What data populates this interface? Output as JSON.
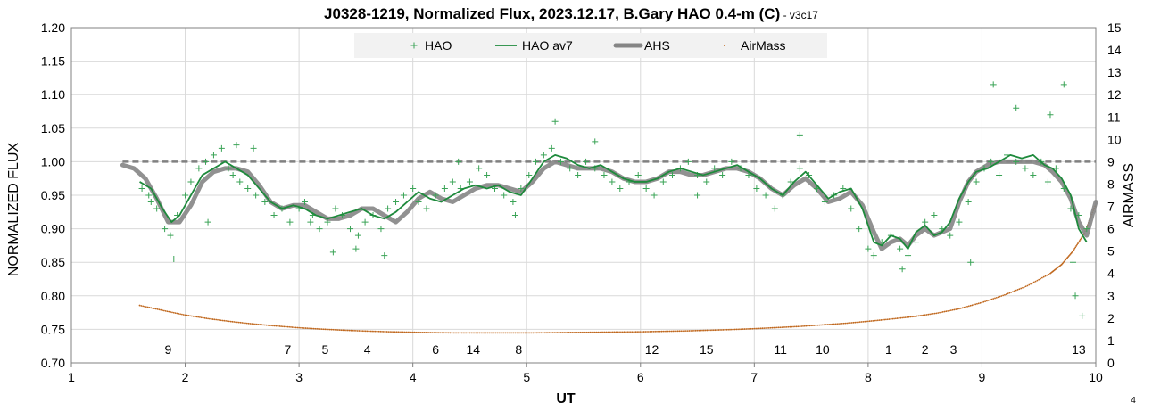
{
  "chart_data": {
    "type": "line",
    "title": "J0328-1219, Normalized Flux, 2023.12.17, B.Gary HAO 0.4-m (C)",
    "title_suffix": " - ",
    "version": "v3c17",
    "xlabel": "UT",
    "ylabel": "NORMALIZED FLUX",
    "y2label": "AIRMASS",
    "xlim": [
      1,
      10
    ],
    "ylim": [
      0.7,
      1.2
    ],
    "y2lim": [
      0,
      15
    ],
    "x_ticks": [
      "1",
      "2",
      "3",
      "4",
      "5",
      "6",
      "7",
      "8",
      "9",
      "10"
    ],
    "y_ticks": [
      "0.70",
      "0.75",
      "0.80",
      "0.85",
      "0.90",
      "0.95",
      "1.00",
      "1.05",
      "1.10",
      "1.15",
      "1.20"
    ],
    "y2_ticks": [
      "0",
      "1",
      "2",
      "3",
      "4",
      "5",
      "6",
      "7",
      "8",
      "9",
      "10",
      "11",
      "12",
      "13",
      "14",
      "15"
    ],
    "grid": true,
    "legend_position": "top",
    "corner_label": "4",
    "colors": {
      "hao": "#3aa356",
      "hao_av7": "#1e8a3c",
      "ahs": "#858585",
      "airmass": "#c0681e",
      "reference": "#808080"
    },
    "series": [
      {
        "name": "HAO",
        "style": "markers-plus",
        "x": [
          1.62,
          1.68,
          1.75,
          1.82,
          1.87,
          1.93,
          2.0,
          2.05,
          2.12,
          2.18,
          2.25,
          2.32,
          2.38,
          2.42,
          2.48,
          2.55,
          2.62,
          2.7,
          2.78,
          2.85,
          2.92,
          3.0,
          3.05,
          3.12,
          3.18,
          3.25,
          3.32,
          3.38,
          3.45,
          3.52,
          3.58,
          3.65,
          3.72,
          3.78,
          3.85,
          3.92,
          4.0,
          4.05,
          4.12,
          4.2,
          4.28,
          4.35,
          4.42,
          4.5,
          4.58,
          4.65,
          4.72,
          4.8,
          4.88,
          4.95,
          5.02,
          5.08,
          5.15,
          5.22,
          5.3,
          5.38,
          5.45,
          5.52,
          5.6,
          5.68,
          5.75,
          5.82,
          5.9,
          5.98,
          6.05,
          6.12,
          6.2,
          6.28,
          6.35,
          6.42,
          6.5,
          6.58,
          6.65,
          6.72,
          6.8,
          6.88,
          6.95,
          7.02,
          7.1,
          7.18,
          7.25,
          7.32,
          7.4,
          7.48,
          7.55,
          7.62,
          7.7,
          7.78,
          7.85,
          7.92,
          8.0,
          8.05,
          8.12,
          8.2,
          8.28,
          8.35,
          8.42,
          8.5,
          8.58,
          8.65,
          8.72,
          8.8,
          8.88,
          8.95,
          9.02,
          9.08,
          9.15,
          9.22,
          9.3,
          9.38,
          9.45,
          9.52,
          9.58,
          9.65,
          9.72,
          9.78,
          9.85,
          9.92,
          1.9,
          2.45,
          3.3,
          3.75,
          5.25,
          9.1,
          9.72,
          9.82,
          9.88,
          1.7,
          2.2,
          2.6,
          3.1,
          3.5,
          4.4,
          4.9,
          5.6,
          6.5,
          7.4,
          8.3,
          8.9,
          9.3,
          9.6,
          9.8
        ],
        "y": [
          0.96,
          0.95,
          0.93,
          0.9,
          0.89,
          0.92,
          0.95,
          0.97,
          0.99,
          1.0,
          1.01,
          1.02,
          0.99,
          0.98,
          0.97,
          0.96,
          0.95,
          0.94,
          0.92,
          0.93,
          0.91,
          0.93,
          0.94,
          0.92,
          0.9,
          0.91,
          0.93,
          0.92,
          0.9,
          0.89,
          0.91,
          0.92,
          0.9,
          0.93,
          0.94,
          0.95,
          0.96,
          0.94,
          0.93,
          0.95,
          0.96,
          0.97,
          0.96,
          0.97,
          0.99,
          0.98,
          0.96,
          0.95,
          0.94,
          0.96,
          0.98,
          1.0,
          1.01,
          1.02,
          1.0,
          0.99,
          0.98,
          1.0,
          0.99,
          0.98,
          0.97,
          0.96,
          0.97,
          0.98,
          0.96,
          0.95,
          0.97,
          0.98,
          0.99,
          1.0,
          0.98,
          0.97,
          0.99,
          0.98,
          1.0,
          0.99,
          0.98,
          0.96,
          0.95,
          0.93,
          0.95,
          0.97,
          0.99,
          0.98,
          0.96,
          0.94,
          0.95,
          0.96,
          0.93,
          0.9,
          0.87,
          0.86,
          0.88,
          0.89,
          0.87,
          0.86,
          0.88,
          0.91,
          0.92,
          0.9,
          0.89,
          0.91,
          0.94,
          0.97,
          0.99,
          1.0,
          0.98,
          1.01,
          1.0,
          0.99,
          0.98,
          1.0,
          0.97,
          0.99,
          0.96,
          0.93,
          0.92,
          0.9,
          0.855,
          1.025,
          0.865,
          0.86,
          1.06,
          1.115,
          1.115,
          0.8,
          0.77,
          0.94,
          0.91,
          1.02,
          0.91,
          0.87,
          1.0,
          0.92,
          1.03,
          0.95,
          1.04,
          0.84,
          0.85,
          1.08,
          1.07,
          0.85
        ]
      },
      {
        "name": "HAO av7",
        "style": "line",
        "x": [
          1.6,
          1.7,
          1.8,
          1.88,
          1.95,
          2.05,
          2.15,
          2.25,
          2.35,
          2.45,
          2.55,
          2.65,
          2.75,
          2.85,
          2.95,
          3.05,
          3.15,
          3.25,
          3.35,
          3.45,
          3.55,
          3.65,
          3.75,
          3.85,
          3.95,
          4.05,
          4.15,
          4.25,
          4.35,
          4.45,
          4.55,
          4.65,
          4.75,
          4.85,
          4.95,
          5.05,
          5.15,
          5.25,
          5.35,
          5.45,
          5.55,
          5.65,
          5.75,
          5.85,
          5.95,
          6.05,
          6.15,
          6.25,
          6.35,
          6.45,
          6.55,
          6.65,
          6.75,
          6.85,
          6.95,
          7.05,
          7.15,
          7.25,
          7.35,
          7.45,
          7.55,
          7.65,
          7.75,
          7.85,
          7.95,
          8.05,
          8.12,
          8.2,
          8.28,
          8.35,
          8.42,
          8.5,
          8.58,
          8.65,
          8.72,
          8.8,
          8.88,
          8.95,
          9.05,
          9.15,
          9.25,
          9.35,
          9.45,
          9.55,
          9.62,
          9.7,
          9.78,
          9.85,
          9.92
        ],
        "y": [
          0.97,
          0.96,
          0.93,
          0.91,
          0.92,
          0.95,
          0.98,
          0.99,
          1.0,
          0.99,
          0.98,
          0.96,
          0.94,
          0.93,
          0.935,
          0.93,
          0.92,
          0.915,
          0.92,
          0.925,
          0.93,
          0.92,
          0.915,
          0.925,
          0.94,
          0.955,
          0.945,
          0.94,
          0.95,
          0.96,
          0.965,
          0.96,
          0.965,
          0.955,
          0.95,
          0.975,
          1.0,
          1.01,
          1.005,
          0.995,
          0.99,
          0.995,
          0.985,
          0.975,
          0.97,
          0.97,
          0.975,
          0.985,
          0.99,
          0.985,
          0.98,
          0.985,
          0.99,
          0.995,
          0.985,
          0.975,
          0.96,
          0.95,
          0.97,
          0.985,
          0.965,
          0.945,
          0.955,
          0.96,
          0.93,
          0.88,
          0.875,
          0.89,
          0.885,
          0.87,
          0.895,
          0.905,
          0.89,
          0.895,
          0.91,
          0.945,
          0.97,
          0.985,
          0.99,
          1.0,
          1.01,
          1.005,
          1.01,
          0.995,
          0.99,
          0.975,
          0.95,
          0.9,
          0.88
        ]
      },
      {
        "name": "AHS",
        "style": "thick-line",
        "x": [
          1.45,
          1.55,
          1.65,
          1.75,
          1.85,
          1.95,
          2.05,
          2.15,
          2.25,
          2.35,
          2.45,
          2.55,
          2.65,
          2.75,
          2.85,
          2.95,
          3.05,
          3.15,
          3.25,
          3.35,
          3.45,
          3.55,
          3.65,
          3.75,
          3.85,
          3.95,
          4.05,
          4.15,
          4.25,
          4.35,
          4.45,
          4.55,
          4.65,
          4.75,
          4.85,
          4.95,
          5.05,
          5.15,
          5.25,
          5.35,
          5.45,
          5.55,
          5.65,
          5.75,
          5.85,
          5.95,
          6.05,
          6.15,
          6.25,
          6.35,
          6.45,
          6.55,
          6.65,
          6.75,
          6.85,
          6.95,
          7.05,
          7.15,
          7.25,
          7.35,
          7.45,
          7.55,
          7.65,
          7.75,
          7.85,
          7.95,
          8.05,
          8.12,
          8.2,
          8.28,
          8.35,
          8.42,
          8.5,
          8.58,
          8.65,
          8.72,
          8.8,
          8.88,
          8.95,
          9.05,
          9.15,
          9.25,
          9.35,
          9.45,
          9.55,
          9.62,
          9.7,
          9.78,
          9.85,
          9.92,
          10.0
        ],
        "y": [
          0.995,
          0.99,
          0.975,
          0.945,
          0.91,
          0.91,
          0.935,
          0.97,
          0.985,
          0.99,
          0.99,
          0.985,
          0.965,
          0.94,
          0.93,
          0.935,
          0.935,
          0.925,
          0.915,
          0.915,
          0.92,
          0.93,
          0.93,
          0.92,
          0.91,
          0.925,
          0.945,
          0.955,
          0.945,
          0.94,
          0.95,
          0.96,
          0.965,
          0.965,
          0.96,
          0.955,
          0.97,
          0.99,
          1.0,
          0.995,
          0.99,
          0.99,
          0.99,
          0.985,
          0.975,
          0.97,
          0.97,
          0.975,
          0.985,
          0.985,
          0.98,
          0.98,
          0.985,
          0.99,
          0.99,
          0.985,
          0.975,
          0.96,
          0.95,
          0.965,
          0.975,
          0.96,
          0.94,
          0.945,
          0.955,
          0.935,
          0.895,
          0.87,
          0.88,
          0.885,
          0.875,
          0.89,
          0.9,
          0.89,
          0.895,
          0.9,
          0.94,
          0.97,
          0.985,
          0.995,
          1.0,
          1.0,
          1.0,
          1.0,
          0.995,
          0.985,
          0.97,
          0.945,
          0.91,
          0.89,
          0.94
        ]
      },
      {
        "name": "AirMass",
        "style": "dots",
        "axis": "right",
        "x": [
          1.6,
          1.8,
          2.0,
          2.2,
          2.4,
          2.6,
          2.8,
          3.0,
          3.2,
          3.4,
          3.6,
          3.8,
          4.0,
          4.2,
          4.4,
          4.6,
          4.8,
          5.0,
          5.2,
          5.4,
          5.6,
          5.8,
          6.0,
          6.2,
          6.4,
          6.6,
          6.8,
          7.0,
          7.2,
          7.4,
          7.6,
          7.8,
          8.0,
          8.2,
          8.4,
          8.6,
          8.8,
          9.0,
          9.2,
          9.4,
          9.6,
          9.7,
          9.8,
          9.9,
          10.0
        ],
        "y": [
          2.57,
          2.35,
          2.14,
          1.98,
          1.85,
          1.74,
          1.65,
          1.57,
          1.51,
          1.46,
          1.42,
          1.39,
          1.37,
          1.35,
          1.34,
          1.34,
          1.34,
          1.34,
          1.35,
          1.36,
          1.37,
          1.38,
          1.39,
          1.41,
          1.43,
          1.46,
          1.49,
          1.53,
          1.58,
          1.63,
          1.7,
          1.77,
          1.86,
          1.96,
          2.07,
          2.22,
          2.42,
          2.7,
          3.04,
          3.45,
          4.0,
          4.4,
          5.0,
          5.8,
          7.1
        ]
      },
      {
        "name": "",
        "style": "dashed-reference",
        "x": [
          1.45,
          10.0
        ],
        "y": [
          1.0,
          1.0
        ]
      }
    ],
    "annotations": [
      {
        "text": "9",
        "x": 1.85
      },
      {
        "text": "7",
        "x": 2.9
      },
      {
        "text": "5",
        "x": 3.23
      },
      {
        "text": "4",
        "x": 3.6
      },
      {
        "text": "6",
        "x": 4.2
      },
      {
        "text": "14",
        "x": 4.53
      },
      {
        "text": "8",
        "x": 4.93
      },
      {
        "text": "12",
        "x": 6.1
      },
      {
        "text": "15",
        "x": 6.58
      },
      {
        "text": "11",
        "x": 7.23
      },
      {
        "text": "10",
        "x": 7.6
      },
      {
        "text": "1",
        "x": 8.18
      },
      {
        "text": "2",
        "x": 8.5
      },
      {
        "text": "3",
        "x": 8.75
      },
      {
        "text": "13",
        "x": 9.85
      }
    ]
  }
}
